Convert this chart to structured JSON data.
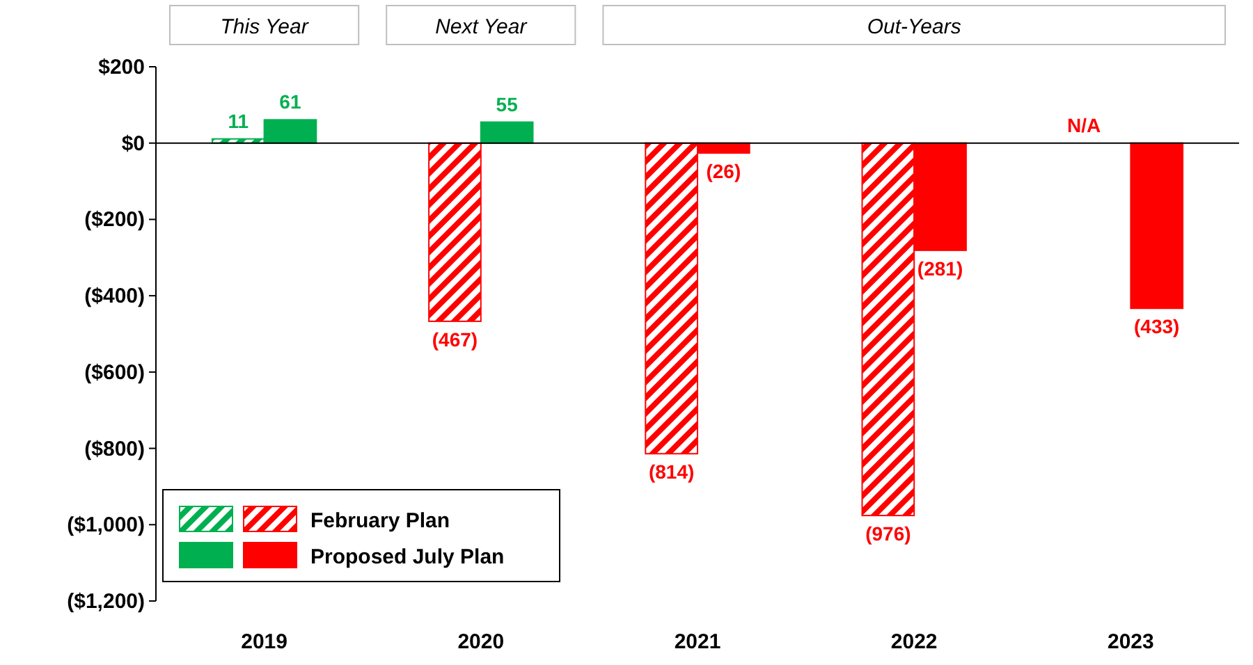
{
  "chart_data": {
    "type": "bar",
    "categories": [
      "2019",
      "2020",
      "2021",
      "2022",
      "2023"
    ],
    "series": [
      {
        "name": "February Plan",
        "colors": [
          "#00b050",
          "#ff0000",
          "#ff0000",
          "#ff0000",
          "#ff0000"
        ],
        "values": [
          11,
          -467,
          -814,
          -976,
          null
        ],
        "value_labels": [
          "11",
          "(467)",
          "(814)",
          "(976)",
          "N/A"
        ]
      },
      {
        "name": "Proposed July Plan",
        "colors": [
          "#00b050",
          "#00b050",
          "#ff0000",
          "#ff0000",
          "#ff0000"
        ],
        "values": [
          61,
          55,
          -26,
          -281,
          -433
        ],
        "value_labels": [
          "61",
          "55",
          "(26)",
          "(281)",
          "(433)"
        ]
      }
    ],
    "ylim": [
      -1200,
      200
    ],
    "yticks": [
      {
        "value": 200,
        "label": "$200"
      },
      {
        "value": 0,
        "label": "$0"
      },
      {
        "value": -200,
        "label": "($200)"
      },
      {
        "value": -400,
        "label": "($400)"
      },
      {
        "value": -600,
        "label": "($600)"
      },
      {
        "value": -800,
        "label": "($800)"
      },
      {
        "value": -1000,
        "label": "($1,000)"
      },
      {
        "value": -1200,
        "label": "($1,200)"
      }
    ],
    "legend": "bottom left",
    "annotations": [
      "This Year",
      "Next Year",
      "Out-Years"
    ]
  }
}
